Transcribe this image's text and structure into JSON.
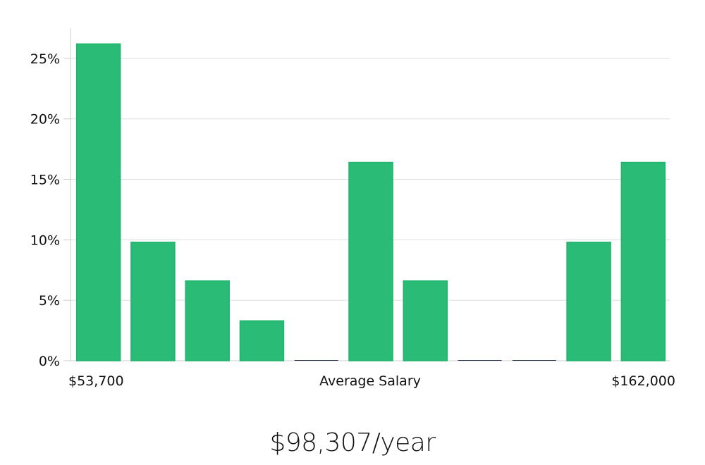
{
  "chart_data": {
    "type": "bar",
    "categories": [
      "1",
      "2",
      "3",
      "4",
      "5",
      "6",
      "7",
      "8",
      "9",
      "10",
      "11"
    ],
    "values": [
      26.2,
      9.8,
      6.6,
      3.3,
      0,
      16.4,
      6.6,
      0,
      0,
      9.8,
      16.4
    ],
    "ylim": [
      0,
      27.5
    ],
    "yticks": [
      0,
      5,
      10,
      15,
      20,
      25
    ],
    "ytick_labels": [
      "0%",
      "5%",
      "10%",
      "15%",
      "20%",
      "25%"
    ],
    "x_left_label": "$53,700",
    "x_center_label": "Average Salary",
    "x_right_label": "$162,000",
    "grid": true,
    "bar_color": "#2abc76",
    "bar_edge_color": "#1fb36c",
    "empty_bar_color": "#1f2d3d",
    "grid_color": "#dddddd",
    "axis_color": "#cccccc",
    "text_color": "#111111"
  },
  "summary": {
    "average": "$98,307/year"
  }
}
